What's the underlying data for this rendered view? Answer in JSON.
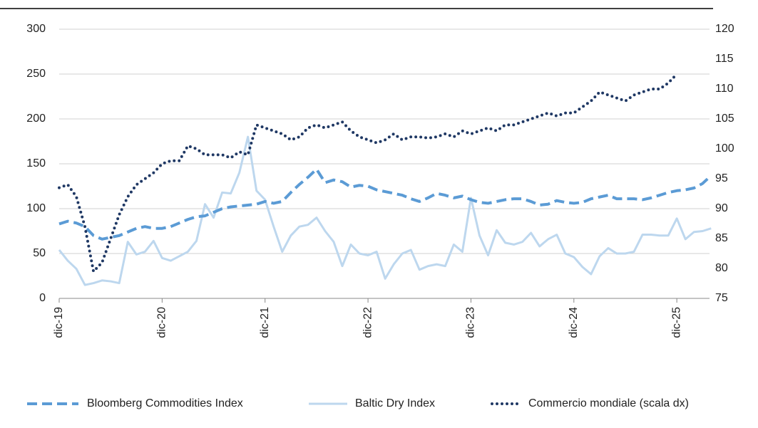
{
  "chart_data": {
    "type": "line",
    "categories": [
      "dic-19",
      null,
      null,
      null,
      null,
      null,
      null,
      null,
      null,
      null,
      null,
      null,
      "dic-20",
      null,
      null,
      null,
      null,
      null,
      null,
      null,
      null,
      null,
      null,
      null,
      "dic-21",
      null,
      null,
      null,
      null,
      null,
      null,
      null,
      null,
      null,
      null,
      null,
      "dic-22",
      null,
      null,
      null,
      null,
      null,
      null,
      null,
      null,
      null,
      null,
      null,
      "dic-23",
      null,
      null,
      null,
      null,
      null,
      null,
      null,
      null,
      null,
      null,
      null,
      "dic-24",
      null,
      null,
      null,
      null,
      null,
      null,
      null,
      null,
      null,
      null,
      null,
      "dic-25",
      null,
      null,
      null,
      null
    ],
    "ylim": [
      0,
      300
    ],
    "yticks": [
      0,
      50,
      100,
      150,
      200,
      250,
      300
    ],
    "y2lim": [
      75,
      120
    ],
    "y2ticks": [
      75,
      80,
      85,
      90,
      95,
      100,
      105,
      110,
      115,
      120
    ],
    "grid": true,
    "legend": "bottom",
    "series": [
      {
        "name": "Bloomberg Commodities Index",
        "color": "#5b9bd5",
        "style": "dashed",
        "values": [
          83,
          86,
          84,
          80,
          70,
          66,
          68,
          70,
          74,
          78,
          80,
          78,
          78,
          80,
          84,
          88,
          91,
          92,
          96,
          100,
          102,
          103,
          104,
          105,
          108,
          106,
          108,
          118,
          127,
          135,
          144,
          129,
          132,
          130,
          124,
          126,
          125,
          121,
          119,
          117,
          115,
          111,
          108,
          112,
          117,
          115,
          112,
          114,
          110,
          107,
          106,
          108,
          110,
          111,
          111,
          108,
          104,
          105,
          109,
          107,
          106,
          107,
          111,
          113,
          115,
          111,
          111,
          111,
          110,
          112,
          115,
          118,
          120,
          121,
          123,
          128,
          137
        ]
      },
      {
        "name": "Baltic Dry Index",
        "color": "#bdd7ee",
        "style": "solid",
        "values": [
          54,
          42,
          33,
          15,
          17,
          20,
          19,
          17,
          63,
          49,
          52,
          64,
          45,
          42,
          47,
          52,
          64,
          105,
          90,
          118,
          117,
          140,
          180,
          120,
          110,
          80,
          52,
          70,
          80,
          82,
          90,
          75,
          63,
          36,
          60,
          50,
          48,
          52,
          22,
          38,
          50,
          54,
          32,
          36,
          38,
          36,
          60,
          52,
          112,
          70,
          48,
          76,
          62,
          60,
          63,
          73,
          58,
          66,
          71,
          50,
          46,
          35,
          27,
          47,
          56,
          50,
          50,
          52,
          71,
          71,
          70,
          70,
          89,
          66,
          74,
          75,
          78
        ]
      },
      {
        "name": "Commercio mondiale (scala dx)",
        "color": "#1f3864",
        "style": "dotted",
        "axis": "y2",
        "values": [
          93.5,
          94,
          92,
          87,
          79.5,
          81,
          85,
          89,
          92,
          94,
          95,
          96,
          97.5,
          98,
          98,
          100.5,
          100,
          99,
          99,
          99,
          98.5,
          99.5,
          99,
          104,
          103.5,
          103,
          102.5,
          101.5,
          102,
          103.5,
          104,
          103.5,
          104,
          104.5,
          103,
          102,
          101.5,
          101,
          101.5,
          102.5,
          101.5,
          102,
          102,
          101.8,
          102,
          102.5,
          102,
          103,
          102.5,
          103,
          103.5,
          103,
          104,
          104,
          104.5,
          105,
          105.5,
          106,
          105.5,
          106,
          106,
          107,
          108,
          109.5,
          109,
          108.5,
          108,
          109,
          109.5,
          110,
          110,
          111,
          112.5,
          null,
          null,
          null,
          null
        ]
      }
    ]
  }
}
